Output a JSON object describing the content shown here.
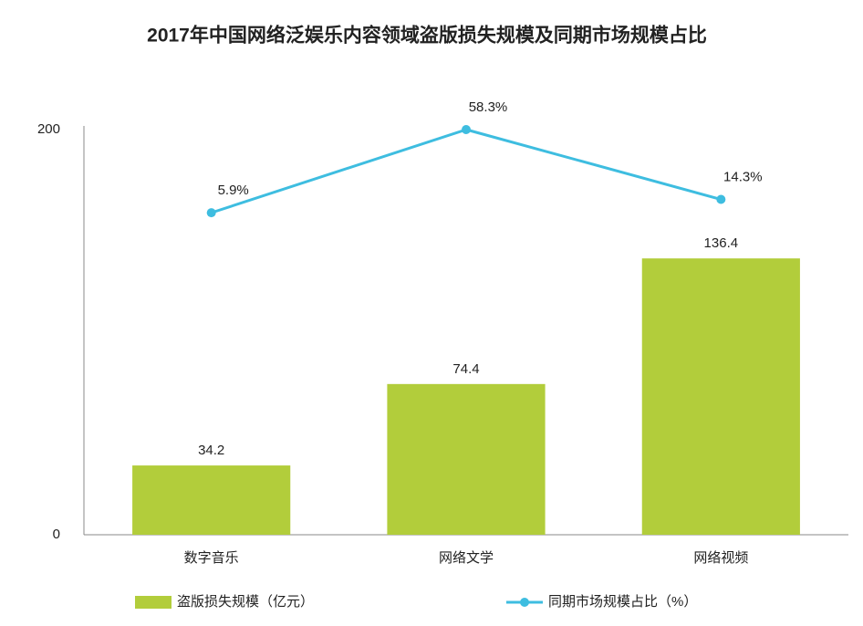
{
  "chart_data": {
    "type": "bar-line",
    "title": "2017年中国网络泛娱乐内容领域盗版损失规模及同期市场规模占比",
    "categories": [
      "数字音乐",
      "网络文学",
      "网络视频"
    ],
    "series": [
      {
        "name": "盗版损失规模（亿元）",
        "type": "bar",
        "color": "#b2cd3b",
        "values": [
          34.2,
          74.4,
          136.4
        ]
      },
      {
        "name": "同期市场规模占比（%）",
        "type": "line",
        "axis": "y2",
        "color": "#3ebde0",
        "values": [
          5.9,
          58.3,
          14.3
        ],
        "value_labels": [
          "5.9%",
          "58.3%",
          "14.3%"
        ]
      }
    ],
    "ylim": [
      0,
      200
    ],
    "yticks": [
      0,
      200
    ],
    "y2lim": [
      -197,
      58.3
    ],
    "grid": false,
    "legend": "bottom"
  }
}
